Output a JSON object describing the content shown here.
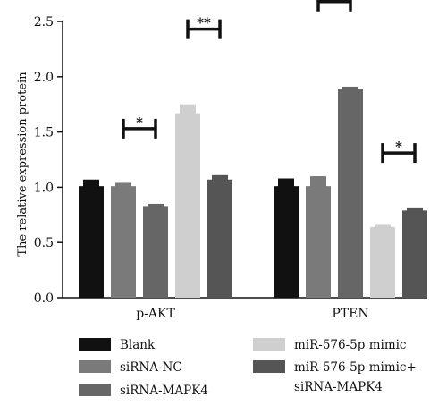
{
  "chart_data": {
    "type": "bar",
    "title": "",
    "xlabel": "",
    "ylabel": "The relative expression protein",
    "ylim": [
      0,
      2.5
    ],
    "yticks": [
      "0.0",
      "0.5",
      "1.0",
      "1.5",
      "2.0",
      "2.5"
    ],
    "grid": false,
    "legend_placement": "bottom",
    "categories": [
      "p-AKT",
      "PTEN"
    ],
    "series": [
      {
        "name": "Blank",
        "color": "#111111",
        "values": [
          1.01,
          1.01
        ],
        "errors": [
          0.06,
          0.07
        ]
      },
      {
        "name": "siRNA-NC",
        "color": "#7a7a7a",
        "values": [
          1.01,
          1.01
        ],
        "errors": [
          0.03,
          0.09
        ]
      },
      {
        "name": "siRNA-MAPK4",
        "color": "#666666",
        "values": [
          0.83,
          1.89
        ],
        "errors": [
          0.02,
          0.02
        ]
      },
      {
        "name": "miR-576-5p mimic",
        "color": "#cfcfcf",
        "values": [
          1.67,
          0.64
        ],
        "errors": [
          0.08,
          0.02
        ]
      },
      {
        "name": "miR-576-5p mimic+\nsiRNA-MAPK4",
        "color": "#555555",
        "values": [
          1.07,
          0.79
        ],
        "errors": [
          0.04,
          0.02
        ]
      }
    ],
    "significance": [
      {
        "category": 0,
        "from_series": 1,
        "to_series": 2,
        "label": "*",
        "y": 1.53
      },
      {
        "category": 0,
        "from_series": 3,
        "to_series": 4,
        "label": "**",
        "y": 2.43
      },
      {
        "category": 1,
        "from_series": 1,
        "to_series": 2,
        "label": "**",
        "y": 2.68
      },
      {
        "category": 1,
        "from_series": 3,
        "to_series": 4,
        "label": "*",
        "y": 1.31
      }
    ]
  }
}
